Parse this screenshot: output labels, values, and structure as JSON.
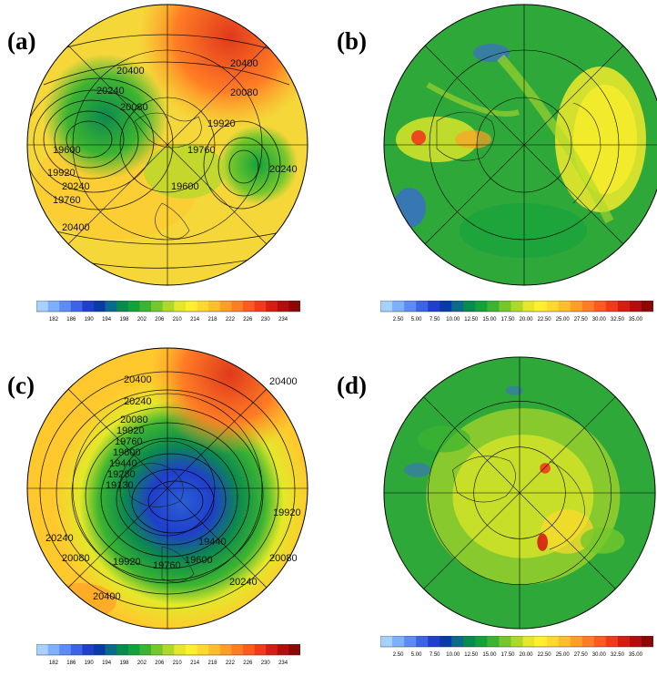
{
  "panels": [
    {
      "label": "(a)",
      "field": "temperature",
      "contour_labels": [
        "20400",
        "20240",
        "20080",
        "19920",
        "19760",
        "20400",
        "20080",
        "19920",
        "19760",
        "20240",
        "20400",
        "19600",
        "19600",
        "20240"
      ],
      "colorbar": {
        "ticks": [
          "182",
          "186",
          "190",
          "194",
          "198",
          "202",
          "206",
          "210",
          "214",
          "218",
          "222",
          "226",
          "230",
          "234"
        ],
        "colors": [
          "#a7d2ff",
          "#7fb0ff",
          "#5c8cf5",
          "#3c64e6",
          "#1f3fcc",
          "#083aa8",
          "#0a6a8c",
          "#0b8a4e",
          "#13a13a",
          "#3cb431",
          "#74c72c",
          "#aed82a",
          "#e4e829",
          "#fff02c",
          "#ffd92b",
          "#ffbe2a",
          "#ff9f27",
          "#ff7d24",
          "#ff5b20",
          "#f23a1b",
          "#d61d14",
          "#b20e0e",
          "#8d0608"
        ]
      }
    },
    {
      "label": "(b)",
      "field": "wind",
      "colorbar": {
        "ticks": [
          "2.50",
          "5.00",
          "7.50",
          "10.00",
          "12.50",
          "15.00",
          "17.50",
          "20.00",
          "22.50",
          "25.00",
          "27.50",
          "30.00",
          "32.50",
          "35.00"
        ],
        "colors": [
          "#a7d2ff",
          "#7fb0ff",
          "#5c8cf5",
          "#3c64e6",
          "#1f3fcc",
          "#083aa8",
          "#0a6a8c",
          "#0b8a4e",
          "#13a13a",
          "#3cb431",
          "#74c72c",
          "#aed82a",
          "#e4e829",
          "#fff02c",
          "#ffd92b",
          "#ffbe2a",
          "#ff9f27",
          "#ff7d24",
          "#ff5b20",
          "#f23a1b",
          "#d61d14",
          "#b20e0e",
          "#8d0608"
        ]
      }
    },
    {
      "label": "(c)",
      "field": "temperature",
      "contour_labels": [
        "20400",
        "20400",
        "20240",
        "20080",
        "19920",
        "19760",
        "19600",
        "19440",
        "19280",
        "19130",
        "19920",
        "19440",
        "19600",
        "19760",
        "19920",
        "20240",
        "20080",
        "20080",
        "20240",
        "20400"
      ],
      "colorbar": {
        "ticks": [
          "182",
          "186",
          "190",
          "194",
          "198",
          "202",
          "206",
          "210",
          "214",
          "218",
          "222",
          "226",
          "230",
          "234"
        ],
        "colors": [
          "#a7d2ff",
          "#7fb0ff",
          "#5c8cf5",
          "#3c64e6",
          "#1f3fcc",
          "#083aa8",
          "#0a6a8c",
          "#0b8a4e",
          "#13a13a",
          "#3cb431",
          "#74c72c",
          "#aed82a",
          "#e4e829",
          "#fff02c",
          "#ffd92b",
          "#ffbe2a",
          "#ff9f27",
          "#ff7d24",
          "#ff5b20",
          "#f23a1b",
          "#d61d14",
          "#b20e0e",
          "#8d0608"
        ]
      }
    },
    {
      "label": "(d)",
      "field": "wind",
      "colorbar": {
        "ticks": [
          "2.50",
          "5.00",
          "7.50",
          "10.00",
          "12.50",
          "15.00",
          "17.50",
          "20.00",
          "22.50",
          "25.00",
          "27.50",
          "30.00",
          "32.50",
          "35.00"
        ],
        "colors": [
          "#a7d2ff",
          "#7fb0ff",
          "#5c8cf5",
          "#3c64e6",
          "#1f3fcc",
          "#083aa8",
          "#0a6a8c",
          "#0b8a4e",
          "#13a13a",
          "#3cb431",
          "#74c72c",
          "#aed82a",
          "#e4e829",
          "#fff02c",
          "#ffd92b",
          "#ffbe2a",
          "#ff9f27",
          "#ff7d24",
          "#ff5b20",
          "#f23a1b",
          "#d61d14",
          "#b20e0e",
          "#8d0608"
        ]
      }
    }
  ]
}
